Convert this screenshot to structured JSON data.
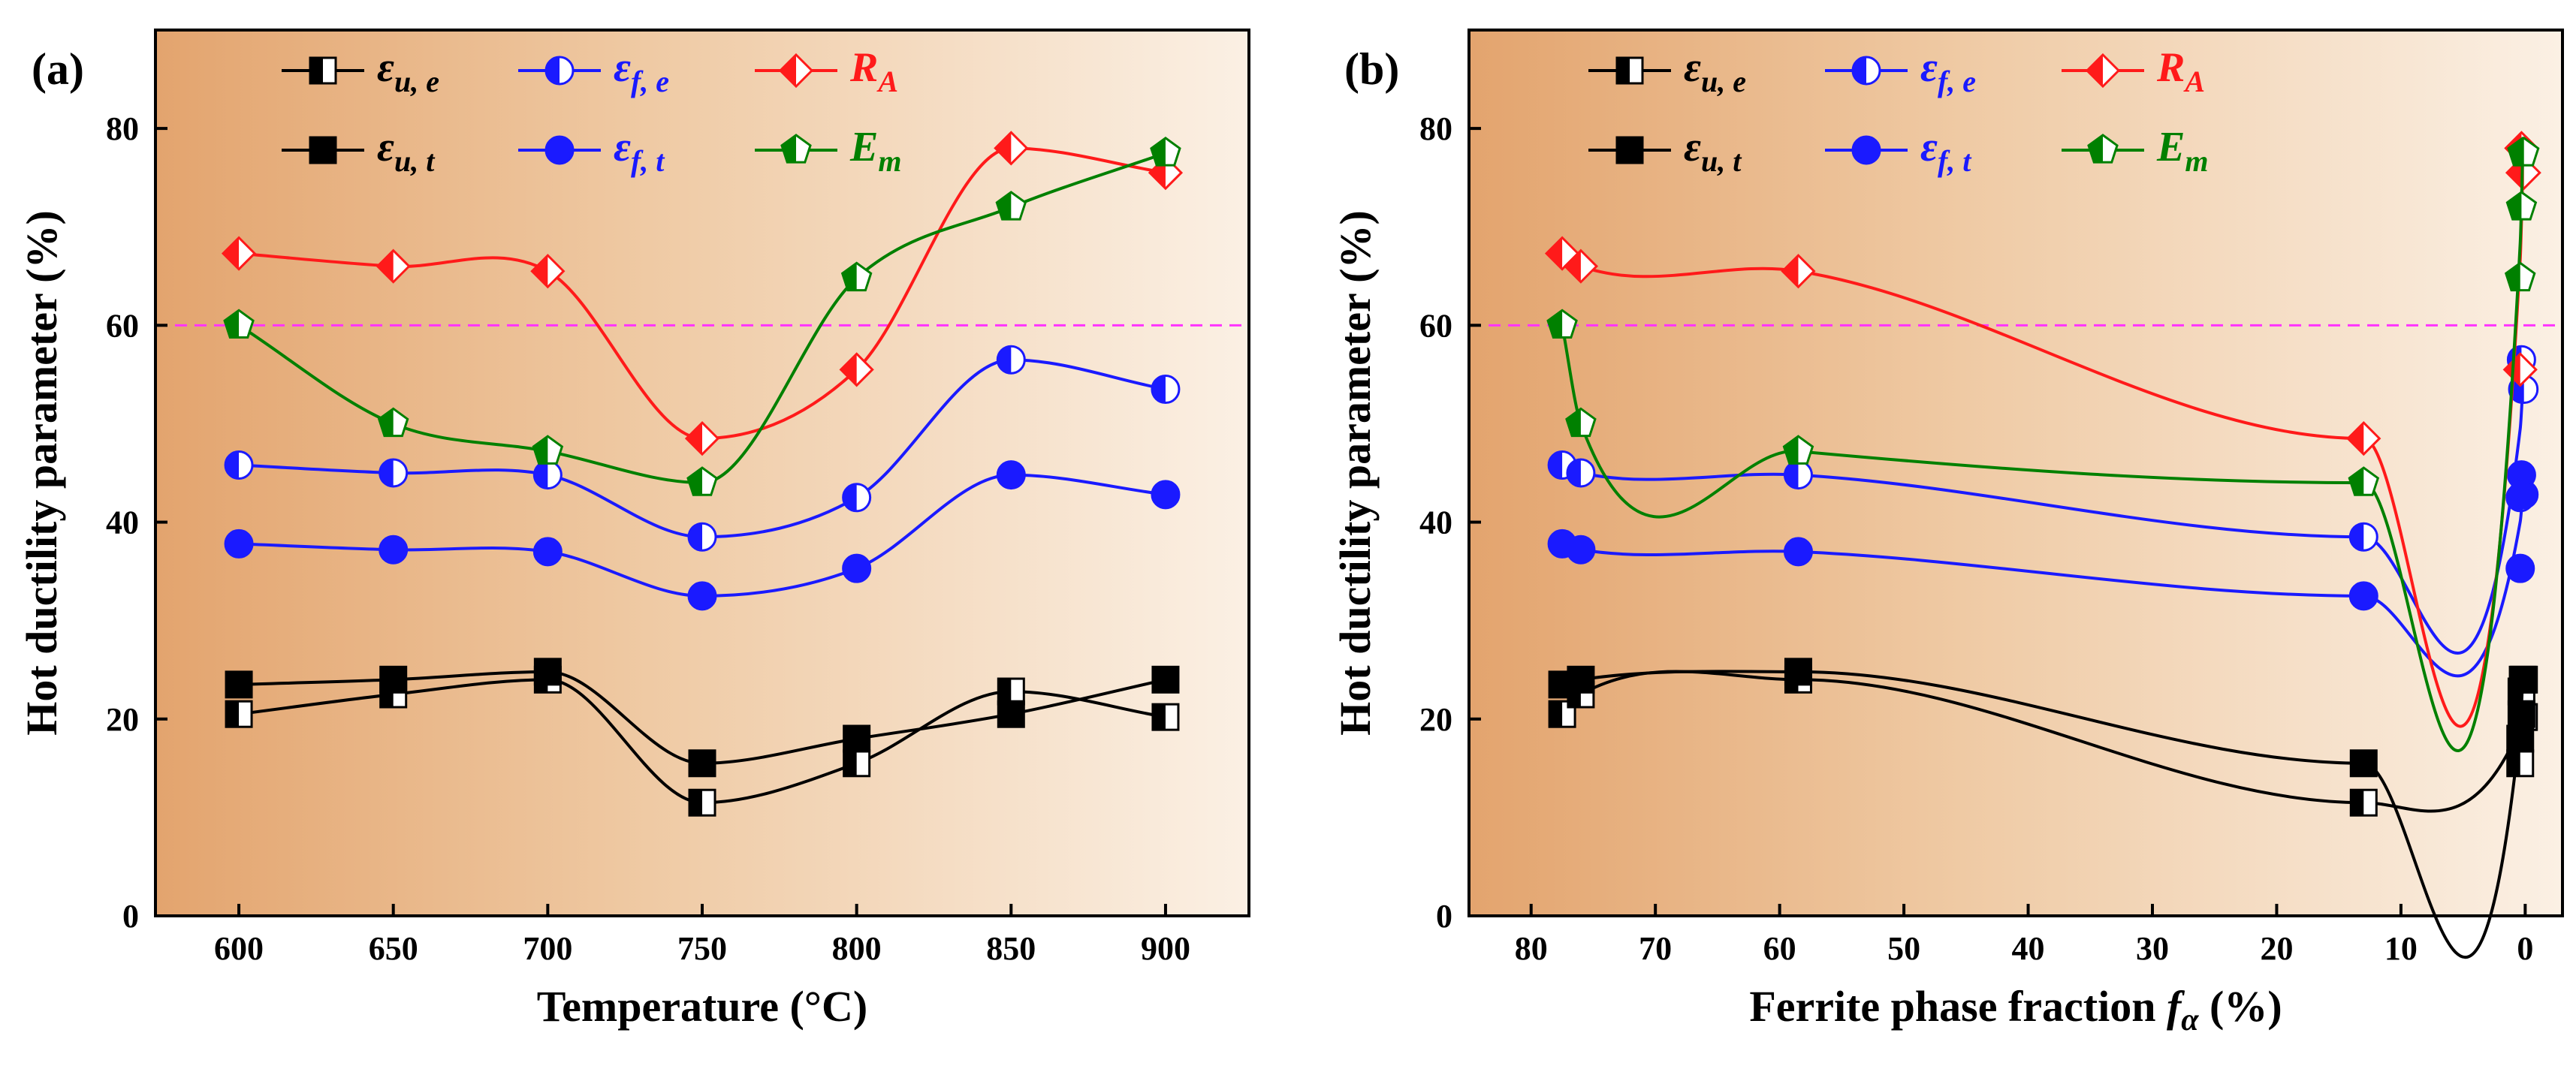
{
  "chart_data": [
    {
      "type": "line",
      "panel_label": "(a)",
      "xlabel": "Temperature (°C)",
      "ylabel": "Hot ductility parameter (%)",
      "xlim": [
        573,
        927
      ],
      "ylim": [
        0,
        90
      ],
      "x_reversed": false,
      "x_ticks": [
        600,
        650,
        700,
        750,
        800,
        850,
        900
      ],
      "y_ticks": [
        0,
        20,
        40,
        60,
        80
      ],
      "reference_line": {
        "y": 60,
        "style": "dashed",
        "color": "#ff33ff"
      },
      "series": [
        {
          "name": "ε_{u,e}",
          "base": "ε",
          "sub": "u, e",
          "color": "#000000",
          "marker": "square-half",
          "x": [
            600,
            650,
            700,
            750,
            800,
            850,
            900
          ],
          "y": [
            20.5,
            22.5,
            24,
            11.5,
            15.5,
            22.8,
            20.2
          ]
        },
        {
          "name": "ε_{u,t}",
          "base": "ε",
          "sub": "u, t",
          "color": "#000000",
          "marker": "square",
          "x": [
            600,
            650,
            700,
            750,
            800,
            850,
            900
          ],
          "y": [
            23.5,
            24,
            24.8,
            15.5,
            18,
            20.5,
            24
          ]
        },
        {
          "name": "ε_{f,e}",
          "base": "ε",
          "sub": "f, e",
          "color": "#1a1aff",
          "marker": "circle-half",
          "x": [
            600,
            650,
            700,
            750,
            800,
            850,
            900
          ],
          "y": [
            45.8,
            45,
            44.8,
            38.5,
            42.5,
            56.5,
            53.5
          ]
        },
        {
          "name": "ε_{f,t}",
          "base": "ε",
          "sub": "f, t",
          "color": "#1a1aff",
          "marker": "circle",
          "x": [
            600,
            650,
            700,
            750,
            800,
            850,
            900
          ],
          "y": [
            37.8,
            37.2,
            37,
            32.5,
            35.3,
            44.8,
            42.8
          ]
        },
        {
          "name": "R_A",
          "base": "R",
          "sub": "A",
          "color": "#ff1a1a",
          "marker": "diamond-half",
          "x": [
            600,
            650,
            700,
            750,
            800,
            850,
            900
          ],
          "y": [
            67.3,
            66,
            65.5,
            48.5,
            55.5,
            78,
            75.5
          ]
        },
        {
          "name": "E_m",
          "base": "E",
          "sub": "m",
          "color": "#008000",
          "marker": "pentagon-half",
          "x": [
            600,
            650,
            700,
            750,
            800,
            850,
            900
          ],
          "y": [
            60,
            50,
            47.2,
            44,
            64.8,
            72,
            77.5
          ]
        }
      ]
    },
    {
      "type": "line",
      "panel_label": "(b)",
      "xlabel": "Ferrite phase fraction",
      "xlabel_symbol": "f",
      "xlabel_sub": "α",
      "xlabel_unit": "(%)",
      "ylabel": "Hot ductility parameter (%)",
      "xlim": [
        85,
        -3
      ],
      "ylim": [
        0,
        90
      ],
      "x_reversed": true,
      "x_ticks": [
        80,
        70,
        60,
        50,
        40,
        30,
        20,
        10,
        0
      ],
      "y_ticks": [
        0,
        20,
        40,
        60,
        80
      ],
      "reference_line": {
        "y": 60,
        "style": "dashed",
        "color": "#ff33ff"
      },
      "series": [
        {
          "name": "ε_{u,e}",
          "base": "ε",
          "sub": "u, e",
          "color": "#000000",
          "marker": "square-half",
          "x": [
            77.5,
            76,
            58.5,
            13,
            0.4,
            0.3,
            0.2,
            0.1
          ],
          "y": [
            20.5,
            22.5,
            24,
            11.5,
            15.5,
            22.8,
            20.2,
            20.2
          ]
        },
        {
          "name": "ε_{u,t}",
          "base": "ε",
          "sub": "u, t",
          "color": "#000000",
          "marker": "square",
          "x": [
            77.5,
            76,
            58.5,
            13,
            0.4,
            0.3,
            0.2,
            0.1
          ],
          "y": [
            23.5,
            24,
            24.8,
            15.5,
            18,
            20.5,
            24,
            24
          ]
        },
        {
          "name": "ε_{f,e}",
          "base": "ε",
          "sub": "f, e",
          "color": "#1a1aff",
          "marker": "circle-half",
          "x": [
            77.5,
            76,
            58.5,
            13,
            0.4,
            0.3,
            0.2,
            0.1
          ],
          "y": [
            45.8,
            45,
            44.8,
            38.5,
            42.5,
            56.5,
            53.5,
            53.5
          ]
        },
        {
          "name": "ε_{f,t}",
          "base": "ε",
          "sub": "f, t",
          "color": "#1a1aff",
          "marker": "circle",
          "x": [
            77.5,
            76,
            58.5,
            13,
            0.4,
            0.3,
            0.2,
            0.1
          ],
          "y": [
            37.8,
            37.2,
            37,
            32.5,
            35.3,
            44.8,
            42.8,
            42.8
          ]
        },
        {
          "name": "R_A",
          "base": "R",
          "sub": "A",
          "color": "#ff1a1a",
          "marker": "diamond-half",
          "x": [
            77.5,
            76,
            58.5,
            13,
            0.4,
            0.3,
            0.2,
            0.1
          ],
          "y": [
            67.3,
            66,
            65.5,
            48.5,
            55.5,
            78,
            75.5,
            75.5
          ]
        },
        {
          "name": "E_m",
          "base": "E",
          "sub": "m",
          "color": "#008000",
          "marker": "pentagon-half",
          "x": [
            77.5,
            76,
            58.5,
            13,
            0.4,
            0.3,
            0.2,
            0.1
          ],
          "y": [
            60,
            50,
            47.2,
            44,
            64.8,
            72,
            77.5,
            77.5
          ]
        }
      ]
    }
  ]
}
